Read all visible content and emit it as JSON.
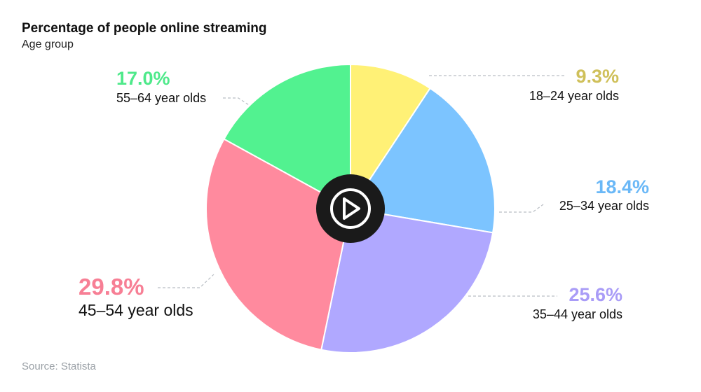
{
  "title": "Percentage of people online streaming",
  "subtitle": "Age group",
  "source": "Source: Statista",
  "play_button": {
    "icon": "play-icon"
  },
  "chart_data": {
    "type": "pie",
    "title": "Percentage of people online streaming",
    "subtitle": "Age group",
    "start_angle_deg": 0,
    "direction": "clockwise",
    "slices": [
      {
        "label": "18–24 year olds",
        "value": 9.3,
        "value_label": "9.3%",
        "color": "#fff176",
        "label_color": "#cfc05a"
      },
      {
        "label": "25–34 year olds",
        "value": 18.4,
        "value_label": "18.4%",
        "color": "#7cc4ff",
        "label_color": "#6ab8f7"
      },
      {
        "label": "35–44 year olds",
        "value": 25.6,
        "value_label": "25.6%",
        "color": "#b0a8ff",
        "label_color": "#a99cf7"
      },
      {
        "label": "45–54 year olds",
        "value": 29.8,
        "value_label": "29.8%",
        "color": "#ff8a9e",
        "label_color": "#f77f95"
      },
      {
        "label": "55–64 year olds",
        "value": 17.0,
        "value_label": "17.0%",
        "color": "#52f290",
        "label_color": "#4ee98a"
      }
    ]
  }
}
